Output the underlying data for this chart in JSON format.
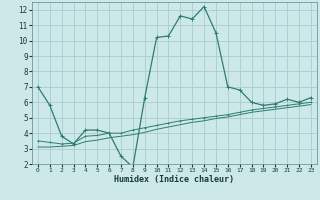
{
  "xlabel": "Humidex (Indice chaleur)",
  "background_color": "#cce8e8",
  "grid_color": "#aacccc",
  "line_color": "#2e7d6e",
  "xlim": [
    -0.5,
    23.5
  ],
  "ylim": [
    2,
    12.5
  ],
  "xticks": [
    0,
    1,
    2,
    3,
    4,
    5,
    6,
    7,
    8,
    9,
    10,
    11,
    12,
    13,
    14,
    15,
    16,
    17,
    18,
    19,
    20,
    21,
    22,
    23
  ],
  "yticks": [
    2,
    3,
    4,
    5,
    6,
    7,
    8,
    9,
    10,
    11,
    12
  ],
  "series1_x": [
    0,
    1,
    2,
    3,
    4,
    5,
    6,
    7,
    8,
    9,
    10,
    11,
    12,
    13,
    14,
    15,
    16,
    17,
    18,
    19,
    20,
    21,
    22,
    23
  ],
  "series1_y": [
    7.0,
    5.8,
    3.8,
    3.3,
    4.2,
    4.2,
    4.0,
    2.5,
    1.8,
    6.3,
    10.2,
    10.3,
    11.6,
    11.4,
    12.2,
    10.5,
    7.0,
    6.8,
    6.0,
    5.8,
    5.9,
    6.2,
    6.0,
    6.3
  ],
  "series2_x": [
    0,
    1,
    2,
    3,
    4,
    5,
    6,
    7,
    8,
    9,
    10,
    11,
    12,
    13,
    14,
    15,
    16,
    17,
    18,
    19,
    20,
    21,
    22,
    23
  ],
  "series2_y": [
    3.5,
    3.4,
    3.3,
    3.35,
    3.8,
    3.85,
    4.0,
    4.0,
    4.2,
    4.35,
    4.5,
    4.65,
    4.8,
    4.9,
    5.0,
    5.1,
    5.2,
    5.35,
    5.5,
    5.6,
    5.7,
    5.8,
    5.9,
    6.0
  ],
  "series3_x": [
    0,
    1,
    2,
    3,
    4,
    5,
    6,
    7,
    8,
    9,
    10,
    11,
    12,
    13,
    14,
    15,
    16,
    17,
    18,
    19,
    20,
    21,
    22,
    23
  ],
  "series3_y": [
    3.1,
    3.1,
    3.15,
    3.2,
    3.45,
    3.55,
    3.7,
    3.8,
    3.9,
    4.05,
    4.25,
    4.4,
    4.55,
    4.7,
    4.8,
    4.95,
    5.05,
    5.2,
    5.35,
    5.45,
    5.55,
    5.65,
    5.75,
    5.85
  ]
}
